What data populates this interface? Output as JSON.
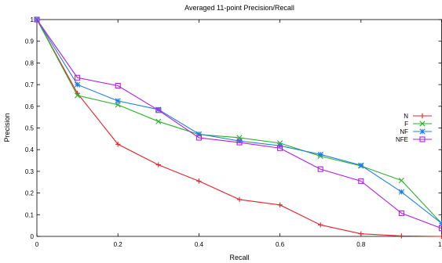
{
  "chart_data": {
    "type": "line",
    "title": "Averaged 11-point Precision/Recall",
    "xlabel": "Recall",
    "ylabel": "Precision",
    "xlim": [
      0,
      1
    ],
    "ylim": [
      0,
      1
    ],
    "x_ticks": [
      "0",
      "0.2",
      "0.4",
      "0.6",
      "0.8",
      "1"
    ],
    "y_ticks": [
      "0",
      "0.1",
      "0.2",
      "0.3",
      "0.4",
      "0.5",
      "0.6",
      "0.7",
      "0.8",
      "0.9",
      "1"
    ],
    "grid": false,
    "legend_position": "right",
    "x": [
      0,
      0.1,
      0.2,
      0.3,
      0.4,
      0.5,
      0.6,
      0.7,
      0.8,
      0.9,
      1.0
    ],
    "series": [
      {
        "name": "N",
        "color": "#e8202a",
        "marker": "plus",
        "values": [
          1.0,
          0.66,
          0.425,
          0.33,
          0.255,
          0.17,
          0.145,
          0.053,
          0.012,
          0.002,
          0.0
        ]
      },
      {
        "name": "F",
        "color": "#2bb12b",
        "marker": "cross",
        "values": [
          1.0,
          0.65,
          0.607,
          0.53,
          0.47,
          0.455,
          0.43,
          0.37,
          0.325,
          0.258,
          0.06
        ]
      },
      {
        "name": "NF",
        "color": "#1f7fe0",
        "marker": "star",
        "values": [
          1.0,
          0.7,
          0.625,
          0.585,
          0.472,
          0.44,
          0.418,
          0.378,
          0.328,
          0.205,
          0.06
        ]
      },
      {
        "name": "NFE",
        "color": "#b11fe0",
        "marker": "square",
        "values": [
          1.0,
          0.732,
          0.695,
          0.582,
          0.455,
          0.433,
          0.407,
          0.31,
          0.255,
          0.107,
          0.037
        ]
      }
    ]
  }
}
